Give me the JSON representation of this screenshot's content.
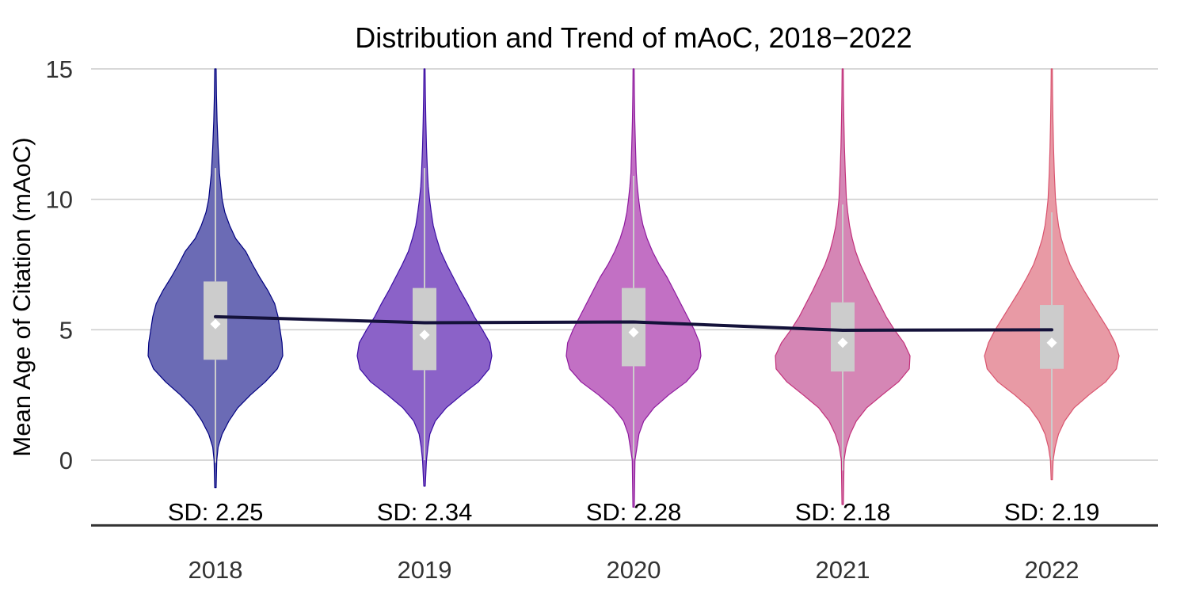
{
  "chart_data": {
    "type": "violin",
    "title": "Distribution and Trend of mAoC, 2018−2022",
    "xlabel": "",
    "ylabel": "Mean Age of Citation (mAoC)",
    "ylim": [
      -2.5,
      15
    ],
    "yticks": [
      "0",
      "5",
      "10",
      "15"
    ],
    "grid": true,
    "legend": "none",
    "categories": [
      "2018",
      "2019",
      "2020",
      "2021",
      "2022"
    ],
    "violins": [
      {
        "name": "2018",
        "color": "#000080",
        "fill": "#6b6bb5",
        "q1": 3.85,
        "median": 5.2,
        "q3": 6.85,
        "mean": 5.22,
        "whisker_low": -0.1,
        "whisker_high": 11.2,
        "min": -1.05,
        "max": 15,
        "sd_label": "SD: 2.25",
        "density": [
          [
            -1.05,
            0.01
          ],
          [
            0,
            0.02
          ],
          [
            0.5,
            0.04
          ],
          [
            1,
            0.1
          ],
          [
            1.5,
            0.2
          ],
          [
            2,
            0.33
          ],
          [
            2.5,
            0.52
          ],
          [
            3,
            0.74
          ],
          [
            3.5,
            0.92
          ],
          [
            4,
            1.0
          ],
          [
            4.5,
            0.99
          ],
          [
            5,
            0.96
          ],
          [
            5.5,
            0.93
          ],
          [
            6,
            0.88
          ],
          [
            6.5,
            0.78
          ],
          [
            7,
            0.66
          ],
          [
            7.5,
            0.55
          ],
          [
            8,
            0.45
          ],
          [
            8.5,
            0.3
          ],
          [
            9,
            0.21
          ],
          [
            9.5,
            0.14
          ],
          [
            10,
            0.1
          ],
          [
            10.5,
            0.08
          ],
          [
            11,
            0.06
          ],
          [
            12,
            0.04
          ],
          [
            13,
            0.025
          ],
          [
            14,
            0.015
          ],
          [
            15,
            0.01
          ]
        ]
      },
      {
        "name": "2019",
        "color": "#3a0ca3",
        "fill": "#8b62c8",
        "q1": 3.45,
        "median": 4.8,
        "q3": 6.6,
        "mean": 4.8,
        "whisker_low": 0.0,
        "whisker_high": 11.2,
        "min": -1.0,
        "max": 15,
        "sd_label": "SD: 2.34",
        "density": [
          [
            -1,
            0.01
          ],
          [
            0,
            0.03
          ],
          [
            0.5,
            0.05
          ],
          [
            1,
            0.08
          ],
          [
            1.5,
            0.16
          ],
          [
            2,
            0.32
          ],
          [
            2.5,
            0.55
          ],
          [
            3,
            0.8
          ],
          [
            3.5,
            0.96
          ],
          [
            4,
            1.0
          ],
          [
            4.5,
            0.97
          ],
          [
            5,
            0.86
          ],
          [
            5.5,
            0.74
          ],
          [
            6,
            0.64
          ],
          [
            6.5,
            0.53
          ],
          [
            7,
            0.43
          ],
          [
            7.5,
            0.33
          ],
          [
            8,
            0.24
          ],
          [
            8.5,
            0.18
          ],
          [
            9,
            0.13
          ],
          [
            9.5,
            0.1
          ],
          [
            10,
            0.075
          ],
          [
            10.5,
            0.055
          ],
          [
            11,
            0.045
          ],
          [
            12,
            0.03
          ],
          [
            13,
            0.02
          ],
          [
            14,
            0.013
          ],
          [
            15,
            0.008
          ]
        ]
      },
      {
        "name": "2020",
        "color": "#8e1a9e",
        "fill": "#c270c4",
        "q1": 3.6,
        "median": 4.9,
        "q3": 6.6,
        "mean": 4.9,
        "whisker_low": 0.05,
        "whisker_high": 10.9,
        "min": -1.8,
        "max": 15,
        "sd_label": "SD: 2.28",
        "density": [
          [
            -1.8,
            0.01
          ],
          [
            0,
            0.02
          ],
          [
            0.5,
            0.05
          ],
          [
            1,
            0.08
          ],
          [
            1.5,
            0.15
          ],
          [
            2,
            0.3
          ],
          [
            2.5,
            0.52
          ],
          [
            3,
            0.78
          ],
          [
            3.5,
            0.95
          ],
          [
            4,
            1.0
          ],
          [
            4.5,
            0.98
          ],
          [
            5,
            0.9
          ],
          [
            5.5,
            0.8
          ],
          [
            6,
            0.7
          ],
          [
            6.5,
            0.6
          ],
          [
            7,
            0.5
          ],
          [
            7.5,
            0.38
          ],
          [
            8,
            0.28
          ],
          [
            8.5,
            0.2
          ],
          [
            9,
            0.14
          ],
          [
            9.5,
            0.1
          ],
          [
            10,
            0.075
          ],
          [
            10.5,
            0.055
          ],
          [
            11,
            0.04
          ],
          [
            12,
            0.028
          ],
          [
            13,
            0.018
          ],
          [
            14,
            0.012
          ],
          [
            15,
            0.008
          ]
        ]
      },
      {
        "name": "2021",
        "color": "#c2307a",
        "fill": "#d586b5",
        "q1": 3.4,
        "median": 4.5,
        "q3": 6.05,
        "mean": 4.5,
        "whisker_low": -0.4,
        "whisker_high": 9.8,
        "min": -1.7,
        "max": 15,
        "sd_label": "SD: 2.18",
        "density": [
          [
            -1.7,
            0.01
          ],
          [
            0,
            0.02
          ],
          [
            0.5,
            0.05
          ],
          [
            1,
            0.11
          ],
          [
            1.5,
            0.2
          ],
          [
            2,
            0.35
          ],
          [
            2.5,
            0.58
          ],
          [
            3,
            0.82
          ],
          [
            3.5,
            0.98
          ],
          [
            4,
            0.99
          ],
          [
            4.5,
            0.9
          ],
          [
            5,
            0.76
          ],
          [
            5.5,
            0.64
          ],
          [
            6,
            0.54
          ],
          [
            6.5,
            0.44
          ],
          [
            7,
            0.35
          ],
          [
            7.5,
            0.26
          ],
          [
            8,
            0.19
          ],
          [
            8.5,
            0.14
          ],
          [
            9,
            0.1
          ],
          [
            9.5,
            0.075
          ],
          [
            10,
            0.055
          ],
          [
            11,
            0.038
          ],
          [
            12,
            0.026
          ],
          [
            13,
            0.018
          ],
          [
            14,
            0.012
          ],
          [
            15,
            0.008
          ]
        ]
      },
      {
        "name": "2022",
        "color": "#d9536e",
        "fill": "#e89aa5",
        "q1": 3.5,
        "median": 4.5,
        "q3": 5.95,
        "mean": 4.5,
        "whisker_low": 0.0,
        "whisker_high": 9.5,
        "min": -0.75,
        "max": 15,
        "sd_label": "SD: 2.19",
        "density": [
          [
            -0.75,
            0.01
          ],
          [
            0,
            0.02
          ],
          [
            0.5,
            0.05
          ],
          [
            1,
            0.1
          ],
          [
            1.5,
            0.19
          ],
          [
            2,
            0.33
          ],
          [
            2.5,
            0.55
          ],
          [
            3,
            0.8
          ],
          [
            3.5,
            0.96
          ],
          [
            4,
            1.0
          ],
          [
            4.5,
            0.94
          ],
          [
            5,
            0.84
          ],
          [
            5.5,
            0.72
          ],
          [
            6,
            0.6
          ],
          [
            6.5,
            0.48
          ],
          [
            7,
            0.37
          ],
          [
            7.5,
            0.27
          ],
          [
            8,
            0.2
          ],
          [
            8.5,
            0.14
          ],
          [
            9,
            0.1
          ],
          [
            9.5,
            0.075
          ],
          [
            10,
            0.055
          ],
          [
            11,
            0.038
          ],
          [
            12,
            0.026
          ],
          [
            13,
            0.018
          ],
          [
            14,
            0.012
          ],
          [
            15,
            0.008
          ]
        ]
      }
    ],
    "trend_line": {
      "color": "#14123a",
      "x": [
        "2018",
        "2019",
        "2020",
        "2021",
        "2022"
      ],
      "y": [
        5.5,
        5.27,
        5.3,
        4.98,
        5.0
      ]
    },
    "colors": {
      "gridline": "#cccccc",
      "box": "#cccccc",
      "mean_marker": "#ffffff",
      "axis": "#333333"
    }
  }
}
